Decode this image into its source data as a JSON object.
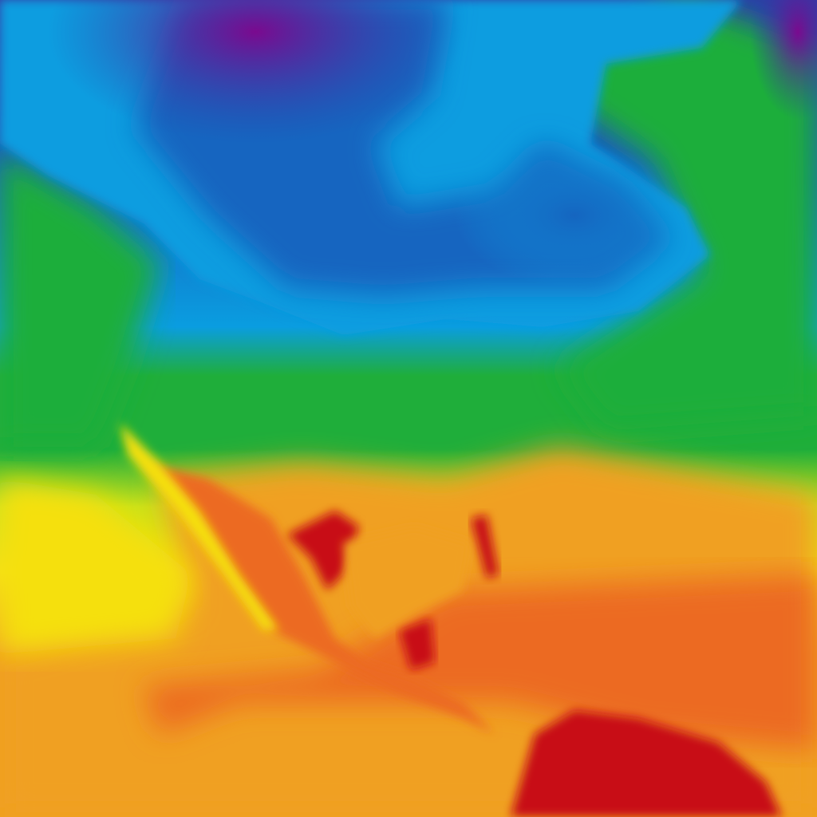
{
  "map": {
    "kind": "temperature-heatmap",
    "region": "North America",
    "palette": {
      "coldest": "#7a0a8f",
      "very_cold": "#2a3fa8",
      "cold": "#1565c0",
      "cool": "#0a9de0",
      "mild": "#1fae3a",
      "warm": "#c8e21a",
      "warmer": "#f5e010",
      "hot": "#f0a020",
      "hotter": "#ec6a20",
      "hottest": "#c80a14"
    }
  }
}
